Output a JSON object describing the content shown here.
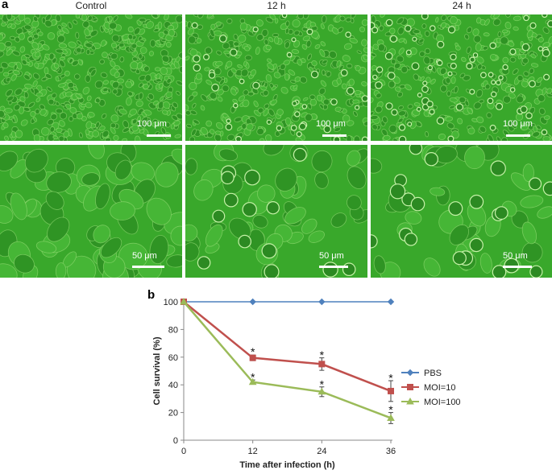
{
  "panel_a": {
    "letter": "a",
    "columns": [
      "Control",
      "12 h",
      "24 h"
    ],
    "scale_top": "100 μm",
    "scale_bottom": "50 μm"
  },
  "panel_b": {
    "letter": "b"
  },
  "colors": {
    "micro_bg": "#39a82b",
    "pbs": "#4f81bd",
    "moi10": "#c0504d",
    "moi100": "#9bbb59"
  },
  "chart_data": {
    "type": "line",
    "title": "",
    "xlabel": "Time after infection (h)",
    "ylabel": "Cell survival (%)",
    "x": [
      0,
      12,
      24,
      36
    ],
    "xticks": [
      "0",
      "12",
      "24",
      "36"
    ],
    "ylim": [
      0,
      100
    ],
    "yticks": [
      "0",
      "20",
      "40",
      "60",
      "80",
      "100"
    ],
    "legend_position": "right",
    "series": [
      {
        "name": "PBS",
        "values": [
          100,
          100,
          100,
          100
        ],
        "errors": [
          0,
          0,
          0,
          0
        ],
        "color": "#4f81bd",
        "marker": "diamond"
      },
      {
        "name": "MOI=10",
        "values": [
          100,
          59.5,
          55,
          35.5
        ],
        "errors": [
          0,
          2,
          4.5,
          7.5
        ],
        "color": "#c0504d",
        "marker": "square"
      },
      {
        "name": "MOI=100",
        "values": [
          100,
          42,
          35,
          16
        ],
        "errors": [
          0,
          1.5,
          3.5,
          4
        ],
        "color": "#9bbb59",
        "marker": "triangle"
      }
    ],
    "annotations": [
      {
        "text": "*",
        "x": 12,
        "y": 64
      },
      {
        "text": "*",
        "x": 12,
        "y": 45.5
      },
      {
        "text": "*",
        "x": 24,
        "y": 61.5
      },
      {
        "text": "*",
        "x": 24,
        "y": 40.5
      },
      {
        "text": "*",
        "x": 36,
        "y": 45
      },
      {
        "text": "*",
        "x": 36,
        "y": 22
      }
    ]
  }
}
